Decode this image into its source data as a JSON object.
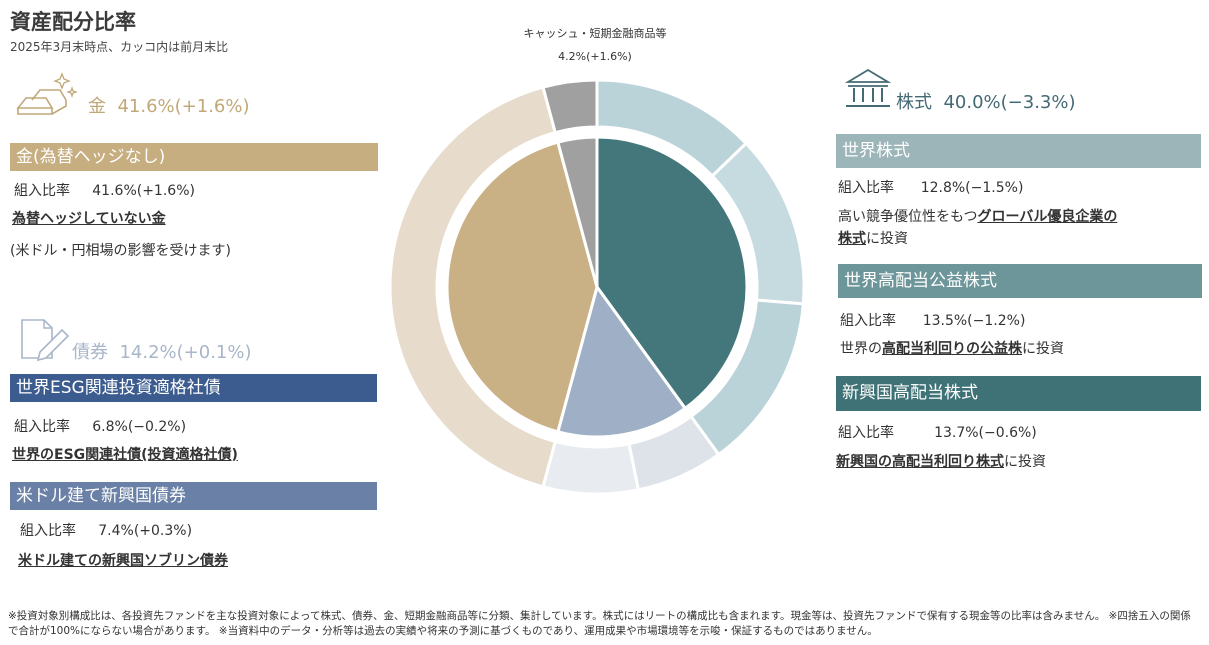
{
  "title": "資産配分比率",
  "subtitle": "2025年3月末時点、カッコ内は前月末比",
  "groups": {
    "gold": {
      "label": "金",
      "value": "41.6%(+1.6%)"
    },
    "bonds": {
      "label": "債券",
      "value": "14.2%(+0.1%)"
    },
    "stocks": {
      "label": "株式",
      "value": "40.0%(−3.3%)"
    }
  },
  "cash_label": "キャッシュ・短期金融商品等",
  "cash_value": "4.2%(+1.6%)",
  "ratio_label": "組入比率",
  "funds": {
    "gold_unhedged": {
      "name": "金(為替ヘッジなし)",
      "ratio": "41.6%(+1.6%)",
      "desc_u": "為替ヘッジしていない金",
      "desc_2": "(米ドル・円相場の影響を受けます)"
    },
    "esg_bond": {
      "name": "世界ESG関連投資適格社債",
      "ratio": "6.8%(−0.2%)",
      "desc_u": "世界のESG関連社債(投資適格社債)"
    },
    "em_usd_bond": {
      "name": "米ドル建て新興国債券",
      "ratio": "7.4%(+0.3%)",
      "desc_u": "米ドル建ての新興国ソブリン債券"
    },
    "world_stock": {
      "name": "世界株式",
      "ratio": "12.8%(−1.5%)",
      "desc_a": "高い競争優位性をもつ",
      "desc_u1": "グローバル優良企業の",
      "desc_u2": "株式",
      "desc_b": "に投資"
    },
    "high_div_util": {
      "name": "世界高配当公益株式",
      "ratio": "13.5%(−1.2%)",
      "desc_a": "世界の",
      "desc_u": "高配当利回りの公益株",
      "desc_b": "に投資"
    },
    "em_high_div": {
      "name": "新興国高配当株式",
      "ratio": "13.7%(−0.6%)",
      "desc_u": "新興国の高配当利回り株式",
      "desc_b": "に投資"
    }
  },
  "footnote": "※投資対象別構成比は、各投資先ファンドを主な投資対象によって株式、債券、金、短期金融商品等に分類、集計しています。株式にはリートの構成比も含まれます。現金等は、投資先ファンドで保有する現金等の比率は含みません。 ※四捨五入の関係で合計が100%にならない場合があります。 ※当資料中のデータ・分析等は過去の実績や将来の予測に基づくものであり、運用成果や市場環境等を示唆・保証するものではありません。",
  "colors": {
    "gold": "#c9b185",
    "bar_gold": "#c7ae81",
    "stock": "#44777c",
    "bond": "#9fb0c6",
    "cash": "#a0a0a0",
    "bar_esg": "#3c5c8f",
    "bar_em_bond": "#6b80a6",
    "bar_world": "#9cb5b9",
    "bar_util": "#6c969a",
    "bar_em_stock": "#3f7276"
  },
  "chart_data": {
    "type": "pie",
    "inner": [
      {
        "name": "株式",
        "value": 40.0,
        "color": "#44777c"
      },
      {
        "name": "債券",
        "value": 14.2,
        "color": "#9fb0c6"
      },
      {
        "name": "金",
        "value": 41.6,
        "color": "#c9b185"
      },
      {
        "name": "キャッシュ・短期金融商品等",
        "value": 4.2,
        "color": "#a0a0a0"
      }
    ],
    "outer": [
      {
        "name": "世界株式",
        "value": 12.8,
        "color": "#b9d3d8"
      },
      {
        "name": "世界高配当公益株式",
        "value": 13.5,
        "color": "#c5dbdf"
      },
      {
        "name": "新興国高配当株式",
        "value": 13.7,
        "color": "#b9d3d8"
      },
      {
        "name": "世界ESG関連投資適格社債",
        "value": 6.8,
        "color": "#dee3ea"
      },
      {
        "name": "米ドル建て新興国債券",
        "value": 7.4,
        "color": "#e8ebf0"
      },
      {
        "name": "金(為替ヘッジなし)",
        "value": 41.6,
        "color": "#e7dccb"
      },
      {
        "name": "キャッシュ・短期金融商品等",
        "value": 4.2,
        "color": "#a0a0a0"
      }
    ]
  }
}
